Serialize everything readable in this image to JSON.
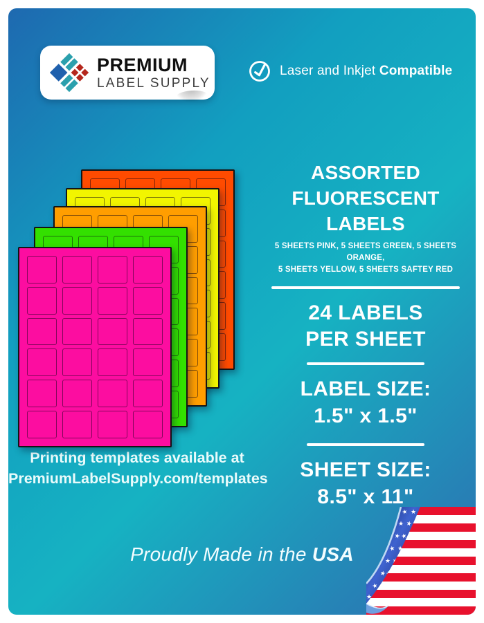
{
  "brand": {
    "line1": "PREMIUM",
    "line2": "LABEL SUPPLY"
  },
  "compatibility": {
    "regular": "Laser and Inkjet",
    "bold": "Compatible"
  },
  "headline": {
    "line1": "ASSORTED",
    "line2": "FLUORESCENT LABELS"
  },
  "contents_note": {
    "line1": "5 SHEETS PINK, 5 SHEETS GREEN, 5 SHEETS ORANGE,",
    "line2": "5 SHEETS YELLOW, 5 SHEETS SAFTEY RED"
  },
  "specs": {
    "per_sheet_line1": "24 LABELS",
    "per_sheet_line2": "PER SHEET",
    "label_size_label": "LABEL SIZE:",
    "label_size_value": "1.5\" x 1.5\"",
    "sheet_size_label": "SHEET SIZE:",
    "sheet_size_value": "8.5\" x 11\""
  },
  "templates_note": {
    "line1": "Printing templates available at",
    "line2": "PremiumLabelSupply.com/templates"
  },
  "footer": {
    "prefix": "Proudly Made in the",
    "bold": "USA"
  },
  "sheets": {
    "labels_per_sheet": 24,
    "rows": 6,
    "columns": 4,
    "items": [
      {
        "name": "pink",
        "color": "#fc0da0"
      },
      {
        "name": "green",
        "color": "#33e000"
      },
      {
        "name": "orange",
        "color": "#ff9e00"
      },
      {
        "name": "yellow",
        "color": "#f2f500"
      },
      {
        "name": "safety-red",
        "color": "#ff4b00"
      }
    ]
  },
  "flag": {
    "stripe_red": "#e8112d",
    "stripe_white": "#ffffff",
    "canton_dark": "#0d1b5e",
    "canton_light": "#3f63cf",
    "star_color": "#ffffff"
  },
  "palette": {
    "bg_blue": "#1e69b0",
    "bg_teal": "#16b2c2",
    "logo_teal": "#2ba0ad",
    "logo_blue": "#1f60ad",
    "logo_red": "#b5271d"
  }
}
